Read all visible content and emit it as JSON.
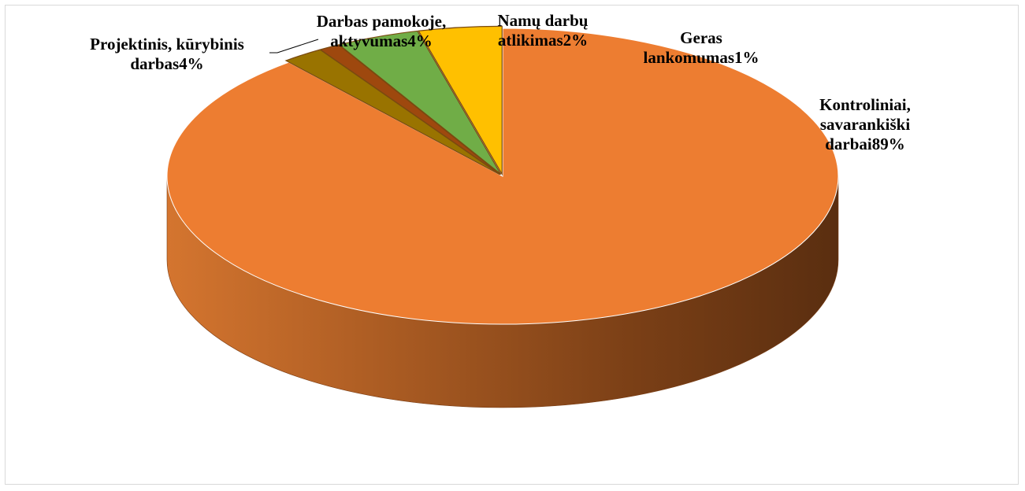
{
  "chart_data": {
    "type": "pie",
    "style": "3d",
    "title": "",
    "legend": "none",
    "slices": [
      {
        "label_lines": [
          "Kontroliniai,",
          "savarankiški",
          "darbai89%"
        ],
        "value": 89,
        "color": "#ED7D31"
      },
      {
        "label_lines": [
          "Projektinis, kūrybinis",
          "darbas4%"
        ],
        "value": 4,
        "color": "#FFC000"
      },
      {
        "label_lines": [
          "Darbas pamokoje,",
          "aktyvumas4%"
        ],
        "value": 4,
        "color": "#70AD47"
      },
      {
        "label_lines": [
          "Geras",
          "lankomumas1%"
        ],
        "value": 1,
        "color": "#9E480E"
      },
      {
        "label_lines": [
          "Namų darbų",
          "atlikimas2%"
        ],
        "value": 2,
        "color": "#997300"
      }
    ]
  }
}
